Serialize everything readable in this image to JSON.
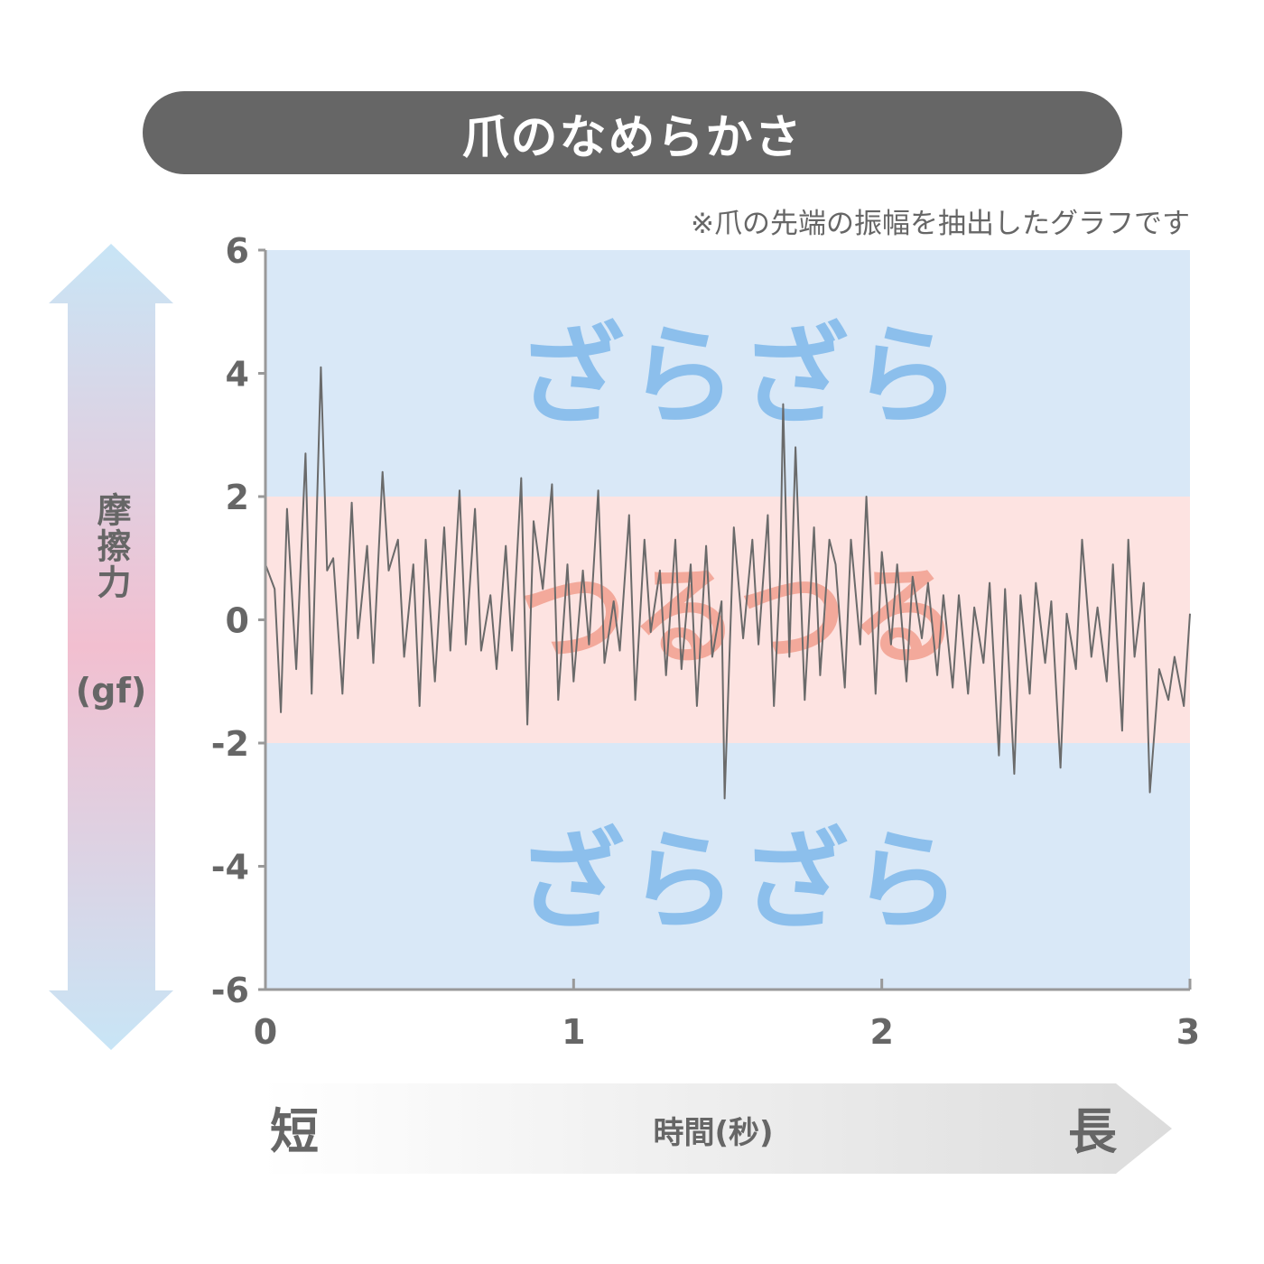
{
  "title": "爪のなめらかさ",
  "note": "※爪の先端の振幅を抽出したグラフです",
  "y_arrow_label": {
    "main": "摩擦力",
    "unit": "(gf)"
  },
  "x_arrow_labels": {
    "left": "短",
    "center": "時間(秒)",
    "right": "長"
  },
  "zones": {
    "rough_label": "ざらざら",
    "smooth_label": "つるつる"
  },
  "colors": {
    "title_bg": "#666666",
    "rough_zone": "#d9e8f7",
    "smooth_zone": "#fde3e1",
    "rough_text": "#8cbfec",
    "smooth_text": "#f2a394",
    "line": "#6a6a6a",
    "axis": "#999999"
  },
  "chart_data": {
    "type": "line",
    "title": "爪のなめらかさ",
    "xlabel": "時間(秒)",
    "ylabel": "摩擦力(gf)",
    "xlim": [
      0,
      3
    ],
    "ylim": [
      -6,
      6
    ],
    "xticks": [
      0,
      1,
      2,
      3
    ],
    "yticks": [
      6,
      4,
      2,
      0,
      -2,
      -4,
      -6
    ],
    "bands": [
      {
        "from": 2,
        "to": 6,
        "label": "ざらざら"
      },
      {
        "from": -2,
        "to": 2,
        "label": "つるつる"
      },
      {
        "from": -6,
        "to": -2,
        "label": "ざらざら"
      }
    ],
    "series": [
      {
        "x": [
          0,
          0.03,
          0.05,
          0.07,
          0.1,
          0.13,
          0.15,
          0.18,
          0.2,
          0.22,
          0.25,
          0.28,
          0.3,
          0.33,
          0.35,
          0.38,
          0.4,
          0.43,
          0.45,
          0.48,
          0.5,
          0.52,
          0.55,
          0.58,
          0.6,
          0.63,
          0.65,
          0.68,
          0.7,
          0.73,
          0.75,
          0.78,
          0.8,
          0.83,
          0.85,
          0.87,
          0.9,
          0.93,
          0.95,
          0.98,
          1.0,
          1.03,
          1.05,
          1.08,
          1.1,
          1.13,
          1.15,
          1.18,
          1.2,
          1.23,
          1.25,
          1.28,
          1.3,
          1.33,
          1.35,
          1.38,
          1.4,
          1.43,
          1.45,
          1.48,
          1.49,
          1.52,
          1.55,
          1.58,
          1.6,
          1.63,
          1.65,
          1.67,
          1.68,
          1.7,
          1.72,
          1.75,
          1.78,
          1.8,
          1.83,
          1.85,
          1.88,
          1.9,
          1.93,
          1.95,
          1.98,
          2.0,
          2.03,
          2.05,
          2.08,
          2.1,
          2.13,
          2.15,
          2.18,
          2.2,
          2.23,
          2.25,
          2.28,
          2.3,
          2.33,
          2.35,
          2.38,
          2.4,
          2.43,
          2.45,
          2.48,
          2.5,
          2.53,
          2.55,
          2.58,
          2.6,
          2.63,
          2.65,
          2.68,
          2.7,
          2.73,
          2.75,
          2.78,
          2.8,
          2.82,
          2.85,
          2.87,
          2.9,
          2.93,
          2.95,
          2.98,
          3.0
        ],
        "y": [
          0.9,
          0.5,
          -1.5,
          1.8,
          -0.8,
          2.7,
          -1.2,
          4.1,
          0.8,
          1.0,
          -1.2,
          1.9,
          -0.3,
          1.2,
          -0.7,
          2.4,
          0.8,
          1.3,
          -0.6,
          0.9,
          -1.4,
          1.3,
          -1.0,
          1.5,
          -0.5,
          2.1,
          -0.4,
          1.8,
          -0.5,
          0.4,
          -0.8,
          1.2,
          -0.5,
          2.3,
          -1.7,
          1.6,
          0.5,
          2.2,
          -1.3,
          0.9,
          -1.0,
          0.8,
          -0.4,
          2.1,
          -0.7,
          0.3,
          -0.5,
          1.7,
          -1.3,
          1.3,
          -0.2,
          0.8,
          -0.9,
          1.3,
          -0.8,
          0.9,
          -1.4,
          1.2,
          -0.6,
          0.3,
          -2.9,
          1.5,
          -0.3,
          1.3,
          -0.4,
          1.7,
          -1.4,
          0.7,
          3.5,
          -0.6,
          2.8,
          -1.3,
          1.5,
          -0.9,
          1.3,
          0.9,
          -1.1,
          1.3,
          -0.4,
          2.0,
          -1.2,
          1.1,
          -0.4,
          0.9,
          -1.0,
          0.7,
          -0.3,
          0.6,
          -0.9,
          0.4,
          -1.1,
          0.4,
          -1.2,
          0.2,
          -0.7,
          0.6,
          -2.2,
          0.5,
          -2.5,
          0.4,
          -1.2,
          0.6,
          -0.7,
          0.3,
          -2.4,
          0.1,
          -0.8,
          1.3,
          -0.6,
          0.2,
          -1.0,
          0.9,
          -1.8,
          1.3,
          -0.6,
          0.6,
          -2.8,
          -0.8,
          -1.3,
          -0.6,
          -1.4,
          0.1
        ]
      }
    ]
  }
}
